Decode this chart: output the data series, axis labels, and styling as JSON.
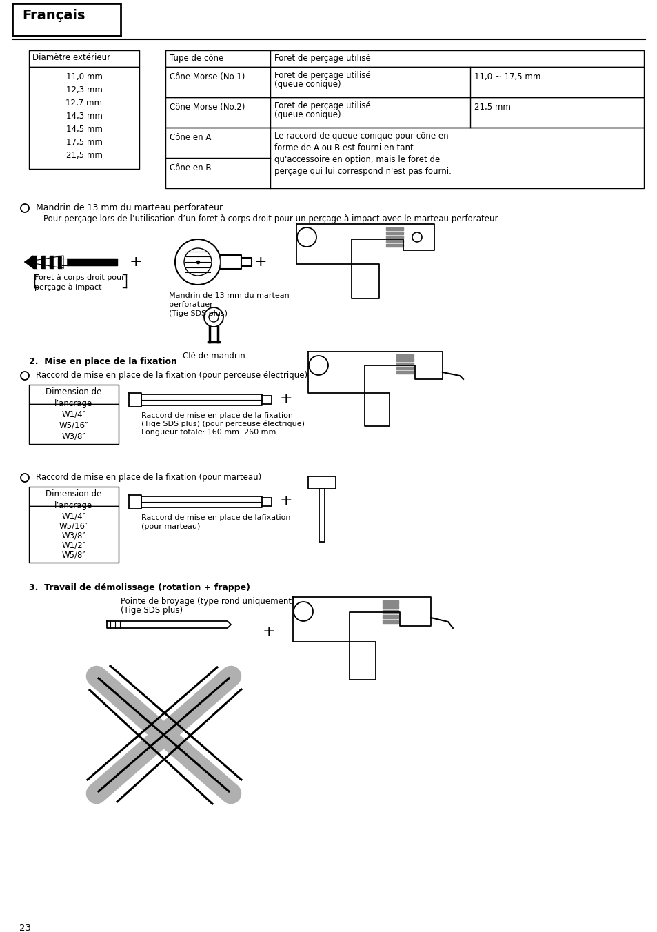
{
  "bg_color": "#ffffff",
  "header_title": "Français",
  "page_number": "23",
  "table1_header": "Diamètre extérieur",
  "table1_values": [
    "11,0 mm",
    "12,3 mm",
    "12,7 mm",
    "14,3 mm",
    "14,5 mm",
    "17,5 mm",
    "21,5 mm"
  ],
  "t2_h1": "Tupe de cône",
  "t2_h2": "Foret de perçage utilisé",
  "t2_r1_c1": "Cône Morse (No.1)",
  "t2_r1_c2a": "Foret de perçage utilisé",
  "t2_r1_c2b": "(queue conique)",
  "t2_r1_c3": "11,0 ~ 17,5 mm",
  "t2_r2_c1": "Cône Morse (No.2)",
  "t2_r2_c2a": "Foret de perçage utilisé",
  "t2_r2_c2b": "(queue conique)",
  "t2_r2_c3": "21,5 mm",
  "t2_r3_c1": "Cône en A",
  "t2_r4_c1": "Cône en B",
  "t2_r34_c2": "Le raccord de queue conique pour cône en\nforme de A ou B est fourni en tant\nqu'accessoire en option, mais le foret de\nperçage qui lui correspond n'est pas fourni.",
  "bullet1_title": "Mandrin de 13 mm du marteau perforateur",
  "bullet1_body": "Pour perçage lors de l’utilisation d’un foret à corps droit pour un perçage à impact avec le marteau perforateur.",
  "label_foret": "Foret à corps droit pour\nperçage à impact",
  "label_mandrin": "Mandrin de 13 mm du martean\nperforatuer\n(Tige SDS plus)",
  "label_cle": "Clé de mandrin",
  "section2_title": "2.  Mise en place de la fixation",
  "bullet2a": "Raccord de mise en place de la fixation (pour perceuse électrique)",
  "t3_header": "Dimension de\nl’ancrage",
  "t3_values": [
    "W1/4″",
    "W5/16″",
    "W3/8″"
  ],
  "label_raccord_elec_l1": "Raccord de mise en place de la fixation",
  "label_raccord_elec_l2": "(Tige SDS plus) (pour perceuse électrique)",
  "label_raccord_elec_l3": "Longueur totale: 160 mm  260 mm",
  "bullet2b": "Raccord de mise en place de la fixation (pour marteau)",
  "t4_header": "Dimension de\nl’ancrage",
  "t4_values": [
    "W1/4″",
    "W5/16″",
    "W3/8″",
    "W1/2″",
    "W5/8″"
  ],
  "label_raccord_marteau_l1": "Raccord de mise en place de lafixation",
  "label_raccord_marteau_l2": "(pour marteau)",
  "section3_title": "3.  Travail de démolissage (rotation + frappe)",
  "label_pointe_l1": "Pointe de broyage (type rond uniquement)",
  "label_pointe_l2": "(Tige SDS plus)"
}
